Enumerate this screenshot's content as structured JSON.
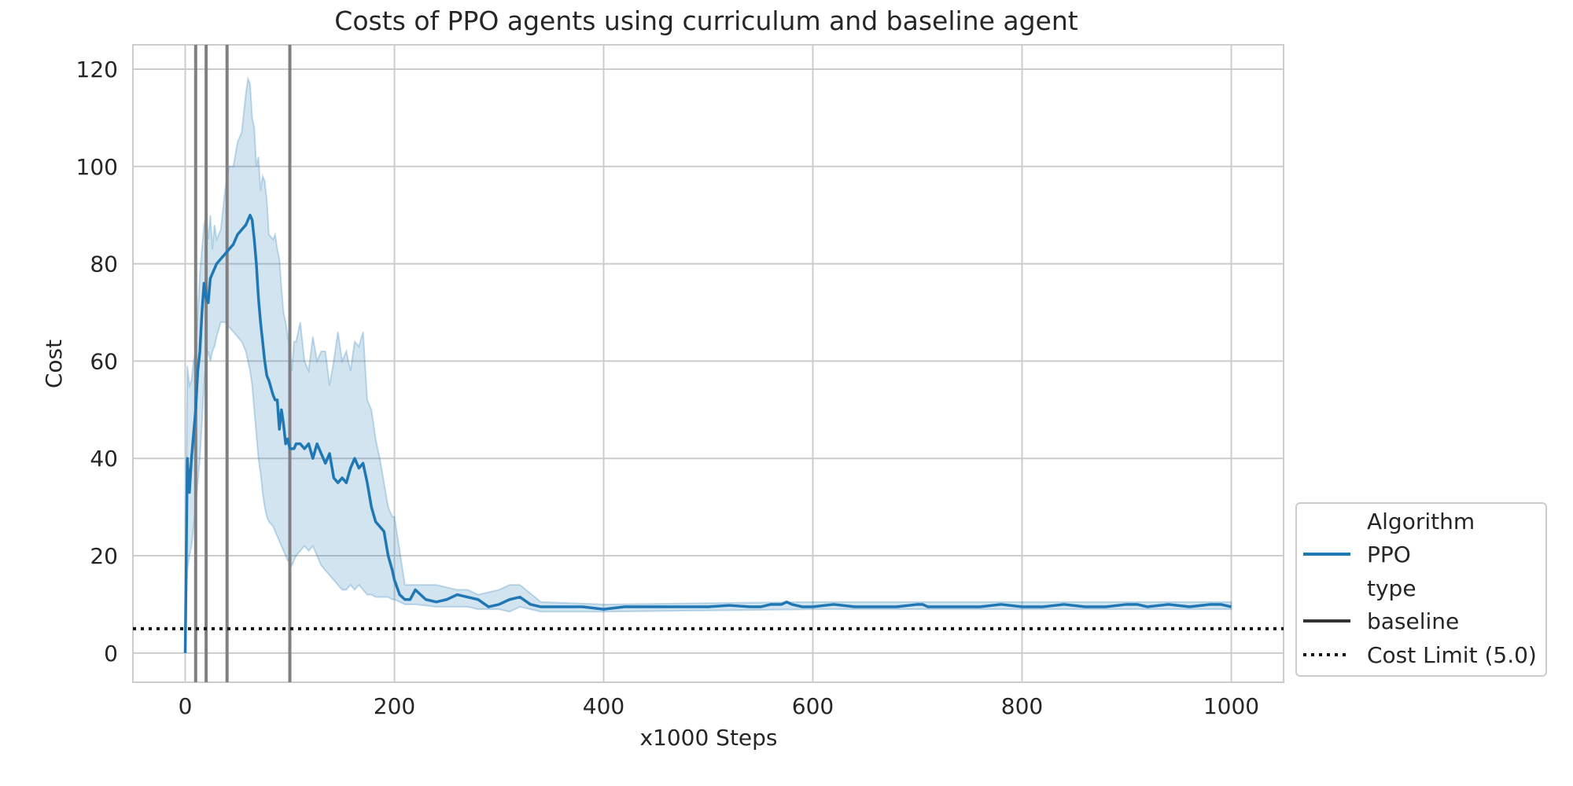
{
  "chart_data": {
    "type": "line",
    "title": "Costs of PPO agents using curriculum and baseline agent",
    "xlabel": "x1000 Steps",
    "ylabel": "Cost",
    "xlim": [
      -50,
      1050
    ],
    "ylim": [
      -6,
      125
    ],
    "xticks": [
      0,
      200,
      400,
      600,
      800,
      1000
    ],
    "xtick_labels": [
      "0",
      "200",
      "400",
      "600",
      "800",
      "1000"
    ],
    "yticks": [
      0,
      20,
      40,
      60,
      80,
      100,
      120
    ],
    "ytick_labels": [
      "0",
      "20",
      "40",
      "60",
      "80",
      "100",
      "120"
    ],
    "grid": true,
    "colors": {
      "series": "#1f77b4",
      "band": "#1f77b4",
      "vlines": "#808080",
      "limit": "#111111",
      "grid": "#cccccc"
    },
    "series": [
      {
        "name": "PPO",
        "x": [
          0,
          2,
          4,
          6,
          8,
          10,
          12,
          14,
          16,
          18,
          20,
          22,
          24,
          26,
          28,
          30,
          34,
          38,
          42,
          46,
          50,
          54,
          58,
          60,
          62,
          64,
          66,
          68,
          70,
          72,
          74,
          76,
          78,
          80,
          84,
          86,
          88,
          90,
          92,
          94,
          96,
          98,
          100,
          102,
          104,
          106,
          110,
          114,
          118,
          122,
          126,
          130,
          134,
          138,
          142,
          146,
          150,
          154,
          158,
          162,
          166,
          170,
          174,
          178,
          182,
          186,
          190,
          194,
          198,
          200,
          205,
          210,
          215,
          220,
          230,
          240,
          250,
          260,
          270,
          280,
          290,
          300,
          310,
          320,
          330,
          340,
          360,
          380,
          400,
          420,
          440,
          460,
          470,
          480,
          500,
          520,
          540,
          550,
          560,
          570,
          575,
          580,
          590,
          600,
          620,
          640,
          660,
          680,
          700,
          705,
          710,
          720,
          740,
          760,
          780,
          800,
          810,
          820,
          840,
          860,
          880,
          900,
          910,
          920,
          940,
          960,
          980,
          990,
          1000
        ],
        "y": [
          0,
          40,
          33,
          40,
          45,
          50,
          58,
          62,
          70,
          76,
          73,
          72,
          77,
          78,
          79,
          80,
          81,
          82,
          83,
          84,
          86,
          87,
          88,
          89,
          90,
          89,
          85,
          80,
          73,
          68,
          64,
          60,
          57,
          56,
          53,
          52,
          52,
          46,
          50,
          47,
          43,
          44,
          42,
          42,
          42,
          43,
          43,
          42,
          43,
          40,
          43,
          41,
          39,
          41,
          36,
          35,
          36,
          35,
          38,
          40,
          38,
          39,
          35,
          30,
          27,
          26,
          25,
          20,
          17,
          15,
          12,
          11,
          11,
          13,
          11,
          10.5,
          11,
          12,
          11.5,
          11,
          9.5,
          10,
          11,
          11.5,
          10,
          9.5,
          9.5,
          9.5,
          9,
          9.5,
          9.5,
          9.5,
          9.5,
          9.5,
          9.5,
          9.8,
          9.5,
          9.5,
          10,
          10,
          10.5,
          10,
          9.5,
          9.5,
          10,
          9.5,
          9.5,
          9.5,
          10,
          10,
          9.5,
          9.5,
          9.5,
          9.5,
          10,
          9.5,
          9.5,
          9.5,
          10,
          9.5,
          9.5,
          10,
          10,
          9.5,
          10,
          9.5,
          10,
          10,
          9.5
        ]
      }
    ],
    "band": {
      "x": [
        0,
        2,
        4,
        6,
        8,
        10,
        14,
        18,
        20,
        22,
        24,
        26,
        28,
        30,
        34,
        38,
        42,
        46,
        50,
        54,
        58,
        60,
        62,
        64,
        66,
        68,
        70,
        72,
        74,
        76,
        78,
        80,
        84,
        86,
        88,
        90,
        92,
        94,
        96,
        98,
        100,
        102,
        104,
        106,
        110,
        114,
        118,
        122,
        126,
        130,
        134,
        138,
        142,
        146,
        150,
        154,
        158,
        162,
        166,
        170,
        174,
        178,
        182,
        186,
        190,
        194,
        198,
        200,
        210,
        220,
        240,
        260,
        270,
        280,
        300,
        310,
        320,
        340,
        400,
        600,
        1000
      ],
      "upper": [
        0,
        59,
        55,
        56,
        60,
        62,
        78,
        88,
        90,
        85,
        90,
        83,
        88,
        85,
        87,
        95,
        100,
        100,
        105,
        107,
        115,
        118,
        117,
        110,
        108,
        100,
        102,
        95,
        98,
        97,
        93,
        86,
        85,
        86,
        83,
        81,
        75,
        70,
        68,
        65,
        63,
        58,
        64,
        64,
        68,
        60,
        58,
        65,
        60,
        62,
        62,
        55,
        60,
        66,
        60,
        62,
        58,
        64,
        63,
        66,
        52,
        50,
        44,
        40,
        35,
        30,
        28,
        28,
        14,
        14,
        14,
        13,
        13,
        12,
        13,
        14,
        14,
        10.5,
        10,
        10.5,
        10.5
      ],
      "lower": [
        0,
        17,
        20,
        22,
        26,
        30,
        40,
        55,
        60,
        62,
        60,
        62,
        63,
        65,
        68,
        68,
        67,
        66,
        65,
        64,
        62,
        60,
        58,
        55,
        50,
        45,
        40,
        37,
        33,
        30,
        28,
        27,
        26,
        25,
        24,
        23,
        22,
        21,
        20,
        19,
        19,
        18,
        19,
        20,
        21,
        22,
        21,
        22,
        20,
        18,
        17,
        16,
        15,
        14,
        13,
        13,
        14,
        13,
        14,
        13,
        12,
        12,
        11.5,
        11.5,
        11.5,
        11.5,
        11,
        11,
        10,
        10,
        9.5,
        9.5,
        9.5,
        9,
        9,
        8.5,
        9.5,
        8.5,
        8.5,
        9,
        9
      ]
    },
    "vlines": [
      10,
      20,
      40,
      100
    ],
    "cost_limit": 5.0,
    "legend": {
      "placement": "lower-right outside",
      "entries": [
        {
          "label": "Algorithm",
          "style": "header"
        },
        {
          "label": "PPO",
          "style": "blue-solid"
        },
        {
          "label": "type",
          "style": "header"
        },
        {
          "label": "baseline",
          "style": "dark-solid"
        },
        {
          "label": "Cost Limit (5.0)",
          "style": "dotted"
        }
      ]
    }
  }
}
